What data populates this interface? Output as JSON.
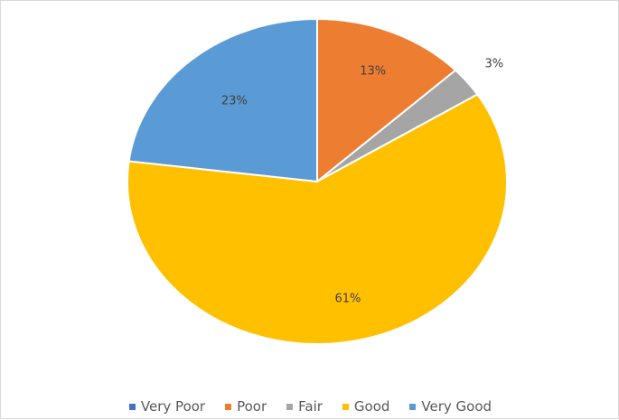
{
  "chart_data": {
    "type": "pie",
    "title": "",
    "legend_position": "bottom",
    "categories": [
      "Very Poor",
      "Poor",
      "Fair",
      "Good",
      "Very Good"
    ],
    "values": [
      0,
      13,
      3,
      61,
      23
    ],
    "value_labels": [
      "",
      "13%",
      "3%",
      "61%",
      "23%"
    ],
    "colors": [
      "#4472c4",
      "#ed7d31",
      "#a5a5a5",
      "#ffc000",
      "#5b9bd5"
    ]
  }
}
